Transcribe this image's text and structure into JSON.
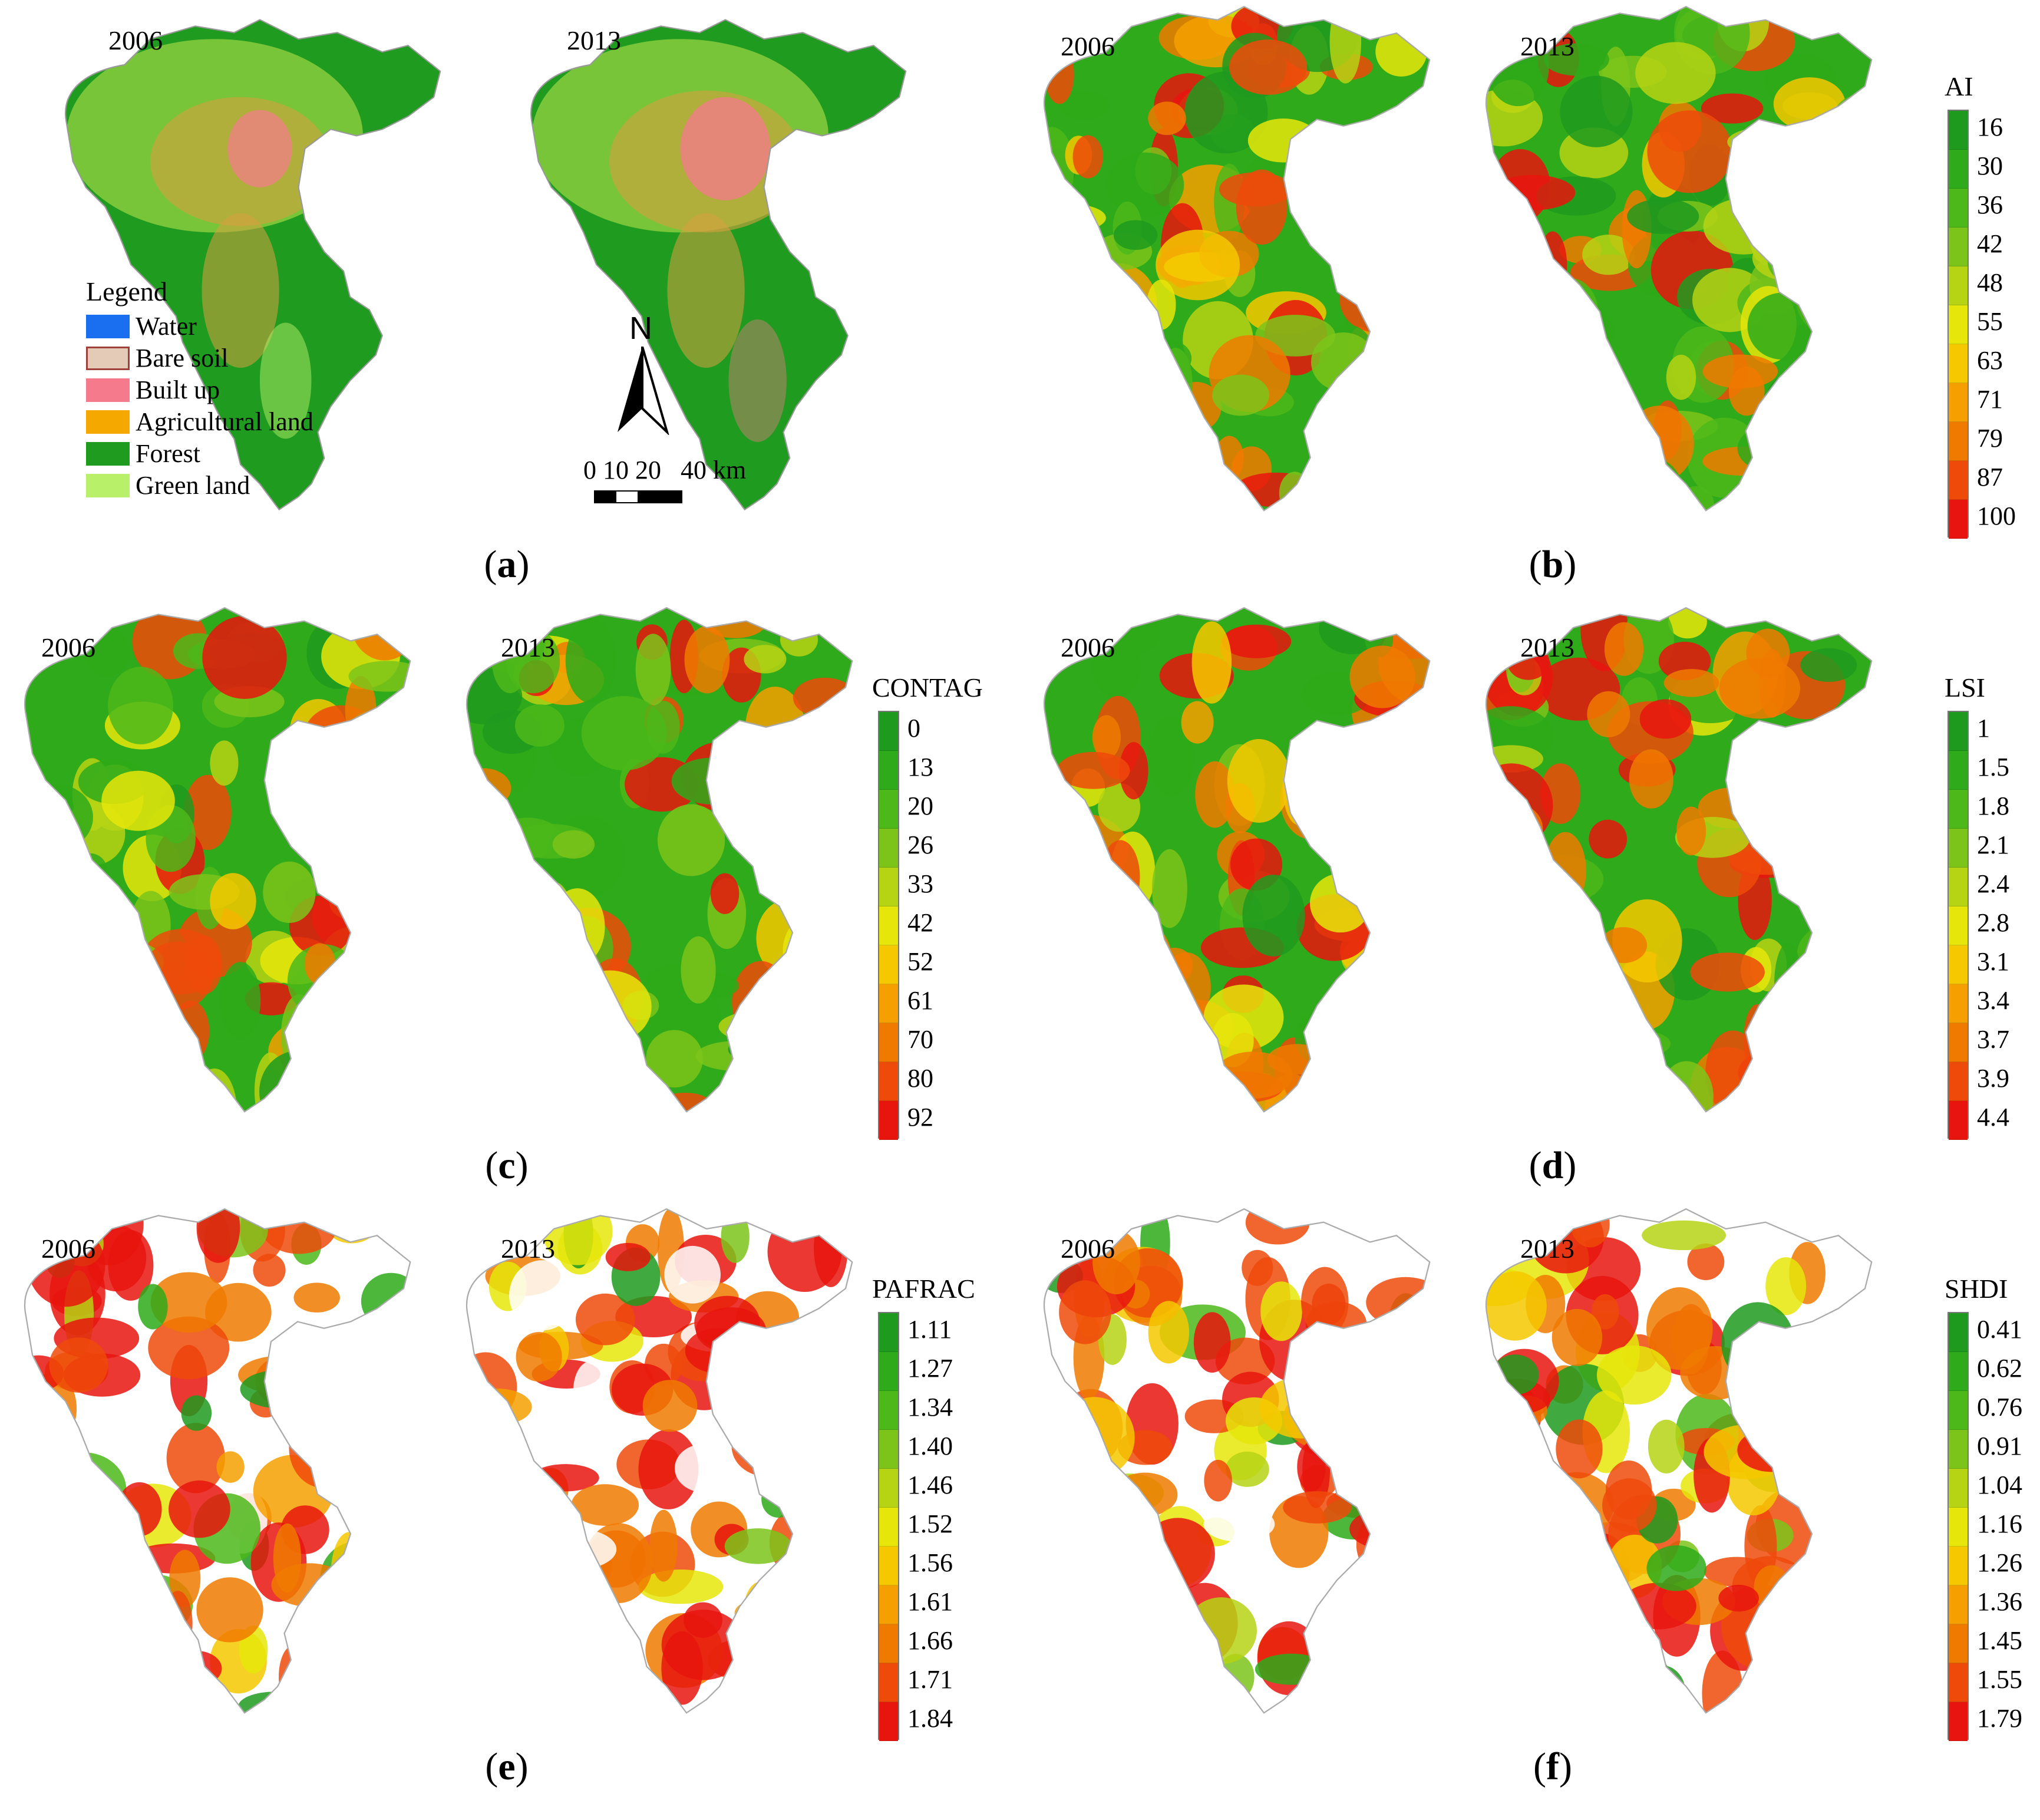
{
  "panels": {
    "a": {
      "label": "a",
      "year_left": "2006",
      "year_right": "2013"
    },
    "b": {
      "label": "b",
      "year_left": "2006",
      "year_right": "2013"
    },
    "c": {
      "label": "c",
      "year_left": "2006",
      "year_right": "2013"
    },
    "d": {
      "label": "d",
      "year_left": "2006",
      "year_right": "2013"
    },
    "e": {
      "label": "e",
      "year_left": "2006",
      "year_right": "2013"
    },
    "f": {
      "label": "f",
      "year_left": "2006",
      "year_right": "2013"
    }
  },
  "landuse_legend": {
    "title": "Legend",
    "items": [
      {
        "label": "Water",
        "color": "#1a6ff0"
      },
      {
        "label": "Bare soil",
        "color": "#e4cbb8"
      },
      {
        "label": "Built up",
        "color": "#f57a8c"
      },
      {
        "label": "Agricultural land",
        "color": "#f5a800"
      },
      {
        "label": "Forest",
        "color": "#1f9b1f"
      },
      {
        "label": "Green land",
        "color": "#b8f06a"
      }
    ]
  },
  "north_arrow": {
    "label": "N"
  },
  "scale_bar": {
    "text": "0 10 20   40 km"
  },
  "ramps": {
    "b": {
      "title": "AI",
      "ticks": [
        "16",
        "30",
        "36",
        "42",
        "48",
        "55",
        "63",
        "71",
        "79",
        "87",
        "100"
      ]
    },
    "c": {
      "title": "CONTAG",
      "ticks": [
        "0",
        "13",
        "20",
        "26",
        "33",
        "42",
        "52",
        "61",
        "70",
        "80",
        "92"
      ]
    },
    "d": {
      "title": "LSI",
      "ticks": [
        "1",
        "1.5",
        "1.8",
        "2.1",
        "2.4",
        "2.8",
        "3.1",
        "3.4",
        "3.7",
        "3.9",
        "4.4"
      ]
    },
    "e": {
      "title": "PAFRAC",
      "ticks": [
        "1.11",
        "1.27",
        "1.34",
        "1.40",
        "1.46",
        "1.52",
        "1.56",
        "1.61",
        "1.66",
        "1.71",
        "1.84"
      ]
    },
    "f": {
      "title": "SHDI",
      "ticks": [
        "0.41",
        "0.62",
        "0.76",
        "0.91",
        "1.04",
        "1.16",
        "1.26",
        "1.36",
        "1.45",
        "1.55",
        "1.79"
      ]
    }
  },
  "ramp_colors": [
    "#1e9a1e",
    "#2eaa1a",
    "#4cb81a",
    "#7cc41a",
    "#b6d414",
    "#e6e60a",
    "#f6c800",
    "#f5a000",
    "#f07a00",
    "#ee4a0a",
    "#e8150e"
  ]
}
